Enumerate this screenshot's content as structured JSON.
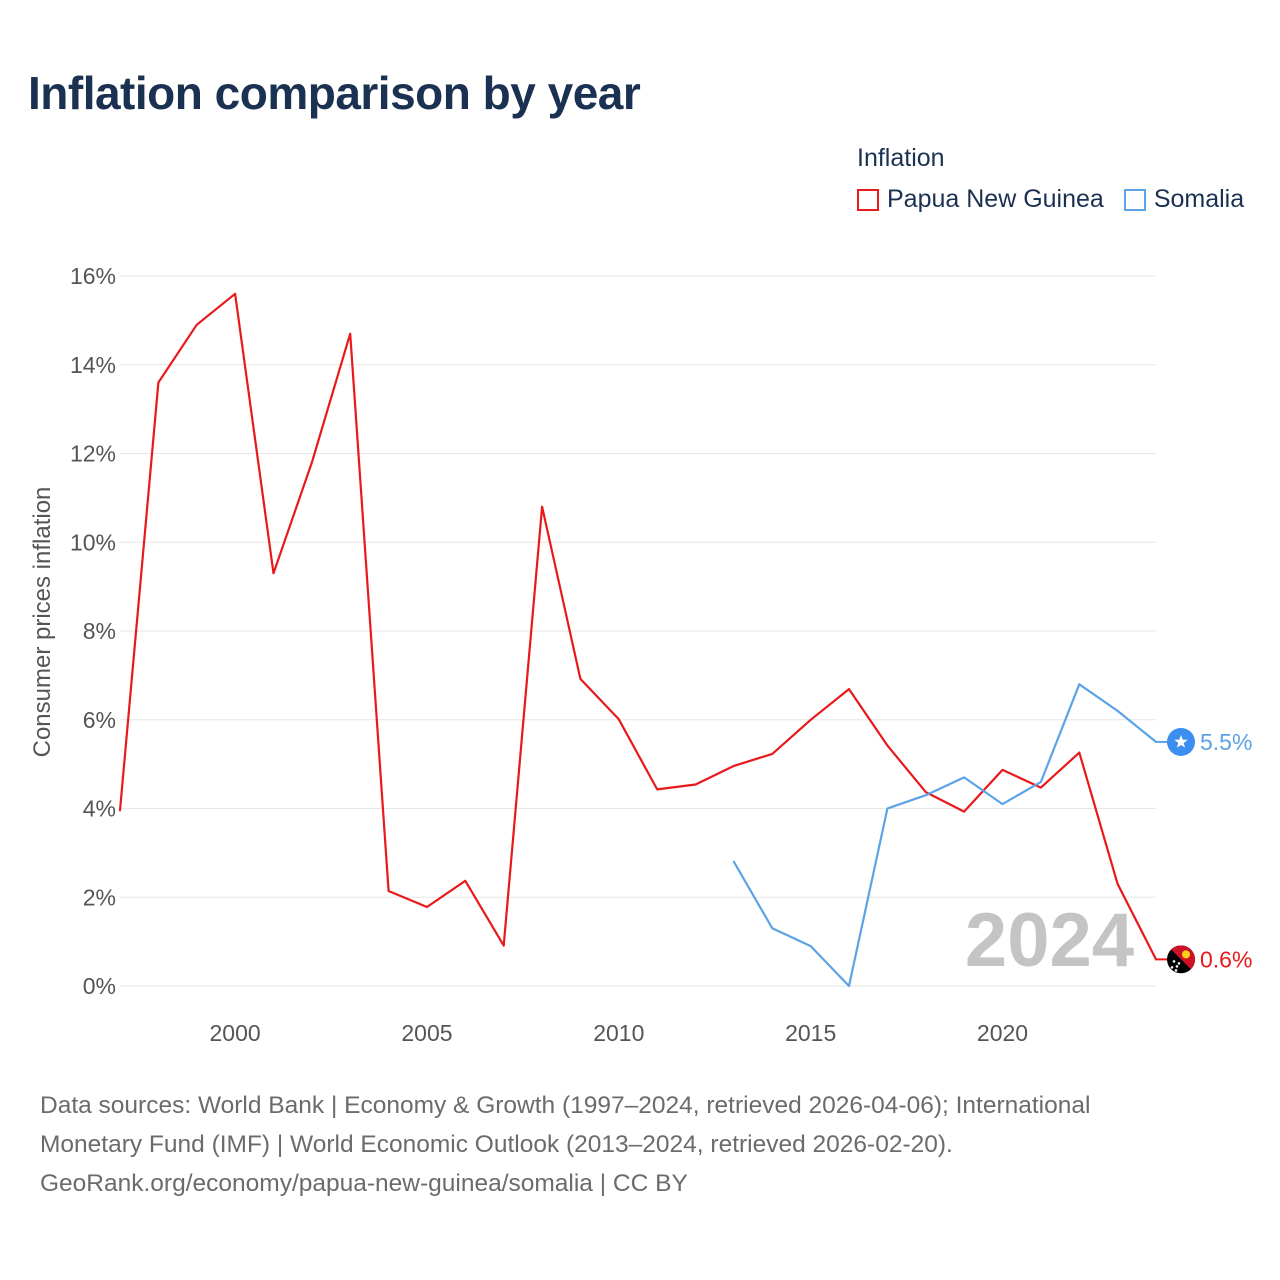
{
  "title": "Inflation comparison by year",
  "legend": {
    "title": "Inflation",
    "items": [
      {
        "label": "Papua New Guinea",
        "color": "#e8191b"
      },
      {
        "label": "Somalia",
        "color": "#5ba3e6"
      }
    ]
  },
  "chart_data": {
    "type": "line",
    "ylabel": "Consumer prices inflation",
    "xlabel": "",
    "ylim": [
      0,
      16
    ],
    "xlim": [
      1997,
      2024
    ],
    "yticks": [
      0,
      2,
      4,
      6,
      8,
      10,
      12,
      14,
      16
    ],
    "ytick_labels": [
      "0%",
      "2%",
      "4%",
      "6%",
      "8%",
      "10%",
      "12%",
      "14%",
      "16%"
    ],
    "xticks": [
      2000,
      2005,
      2010,
      2015,
      2020
    ],
    "xtick_labels": [
      "2000",
      "2005",
      "2010",
      "2015",
      "2020"
    ],
    "grid": true,
    "year_label": "2024",
    "series": [
      {
        "name": "Papua New Guinea",
        "color": "#e8191b",
        "end_label": "0.6%",
        "x": [
          1997,
          1998,
          1999,
          2000,
          2001,
          2002,
          2003,
          2004,
          2005,
          2006,
          2007,
          2008,
          2009,
          2010,
          2011,
          2012,
          2013,
          2014,
          2015,
          2016,
          2017,
          2018,
          2019,
          2020,
          2021,
          2022,
          2023,
          2024
        ],
        "values": [
          3.96,
          13.6,
          14.9,
          15.6,
          9.3,
          11.8,
          14.7,
          2.14,
          1.78,
          2.37,
          0.91,
          10.8,
          6.92,
          6.01,
          4.43,
          4.54,
          4.96,
          5.23,
          6.0,
          6.69,
          5.42,
          4.37,
          3.93,
          4.87,
          4.47,
          5.26,
          2.3,
          0.6
        ]
      },
      {
        "name": "Somalia",
        "color": "#5ba3e6",
        "end_label": "5.5%",
        "x": [
          2013,
          2014,
          2015,
          2016,
          2017,
          2018,
          2019,
          2020,
          2021,
          2022,
          2023,
          2024
        ],
        "values": [
          2.8,
          1.3,
          0.9,
          0.0,
          4.0,
          4.3,
          4.7,
          4.1,
          4.6,
          6.8,
          6.2,
          5.5
        ]
      }
    ]
  },
  "footer": {
    "line1": "Data sources: World Bank | Economy & Growth (1997–2024, retrieved 2026-04-06); International",
    "line2": "Monetary Fund (IMF) | World Economic Outlook (2013–2024, retrieved 2026-02-20).",
    "line3": "GeoRank.org/economy/papua-new-guinea/somalia | CC BY"
  }
}
